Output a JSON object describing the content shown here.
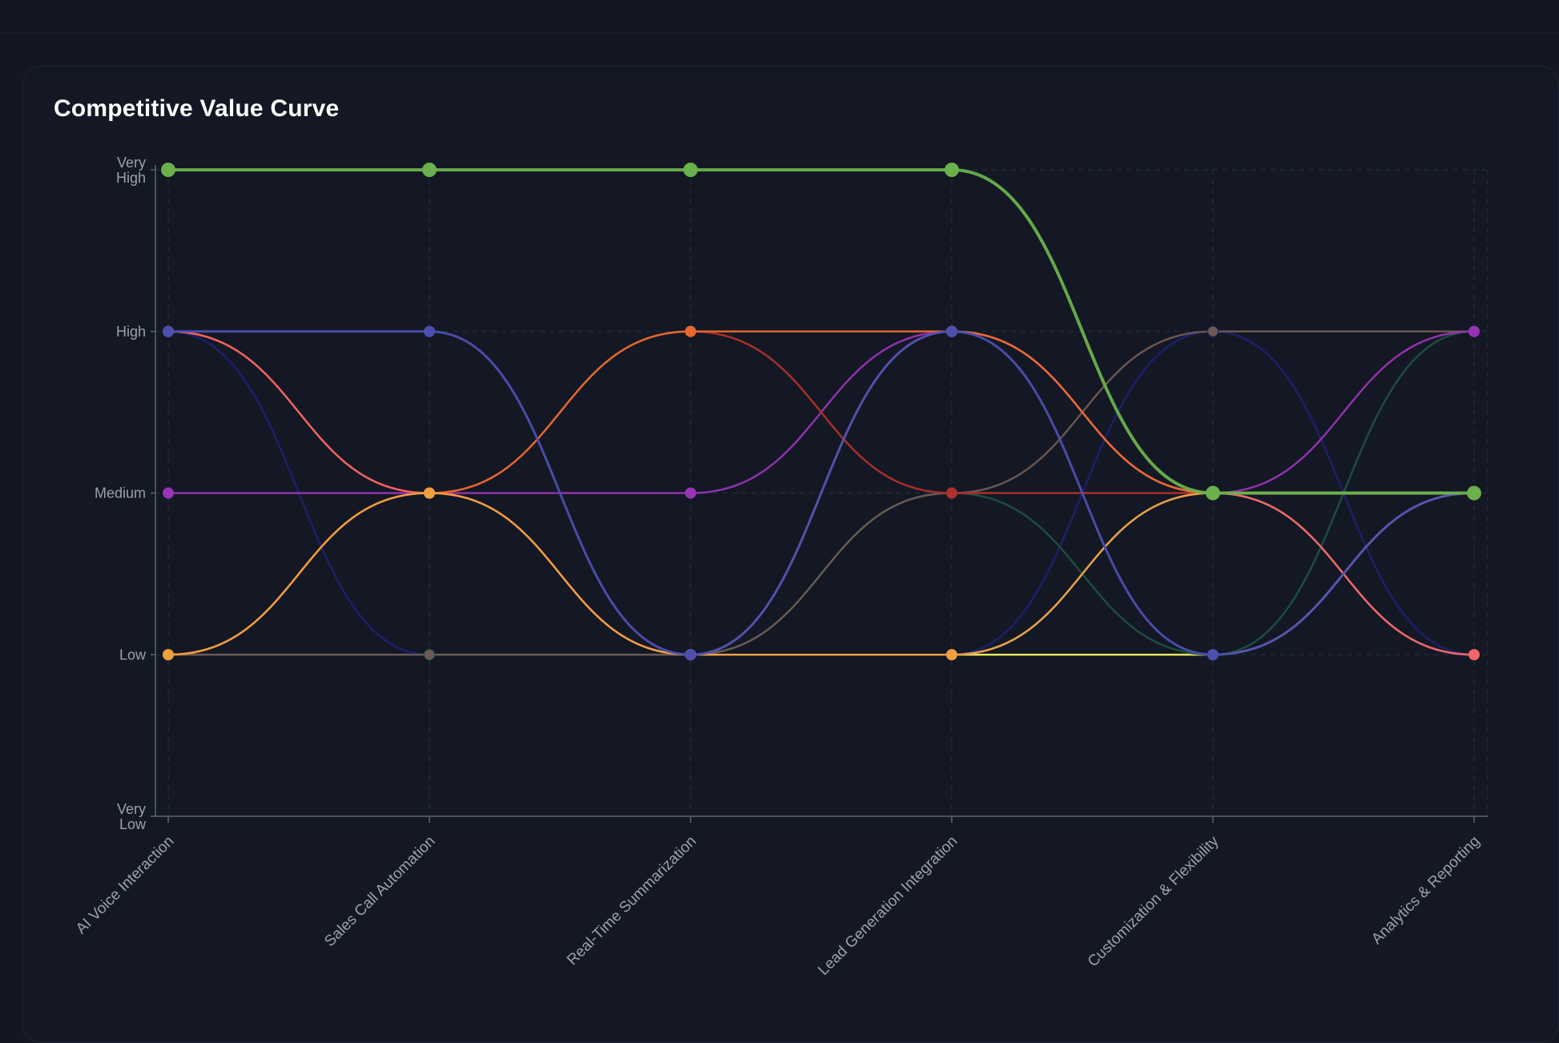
{
  "card": {
    "title": "Competitive Value Curve"
  },
  "colors": {
    "background": "#121722",
    "card": "#131824",
    "grid": "#2a3140",
    "axis": "#5d6473",
    "tick_label": "#9aa1ad"
  },
  "chart_data": {
    "type": "line",
    "title": "Competitive Value Curve",
    "curve": "smooth",
    "grid": true,
    "categories": [
      "AI Voice Interaction",
      "Sales Call Automation",
      "Real-Time Summarization",
      "Lead Generation Integration",
      "Customization & Flexibility",
      "Analytics & Reporting"
    ],
    "y_levels": [
      "Very Low",
      "Low",
      "Medium",
      "High",
      "Very High"
    ],
    "ylim": [
      0,
      4
    ],
    "series": [
      {
        "color": "#6ab04c",
        "width": 4,
        "marker": 9,
        "values": [
          4,
          4,
          4,
          4,
          2,
          2
        ]
      },
      {
        "color": "#4c4fb0",
        "width": 3,
        "marker": 7,
        "values": [
          3,
          3,
          1,
          3,
          1,
          2
        ]
      },
      {
        "color": "#f0a040",
        "width": 2.5,
        "marker": 7,
        "values": [
          1,
          2,
          1,
          1,
          2,
          2
        ]
      },
      {
        "color": "#e8692e",
        "width": 2.5,
        "marker": 7,
        "values": [
          1,
          2,
          3,
          3,
          2,
          2
        ]
      },
      {
        "color": "#f46565",
        "width": 2.5,
        "marker": 7,
        "values": [
          3,
          2,
          1,
          3,
          2,
          1
        ]
      },
      {
        "color": "#b0302c",
        "width": 2.5,
        "marker": 7,
        "values": [
          3,
          2,
          3,
          2,
          2,
          2
        ]
      },
      {
        "color": "#9933b5",
        "width": 2.5,
        "marker": 7,
        "values": [
          2,
          2,
          2,
          3,
          2,
          3
        ]
      },
      {
        "color": "#6e5a55",
        "width": 2.5,
        "marker": 6,
        "values": [
          1,
          1,
          1,
          2,
          3,
          3
        ]
      },
      {
        "color": "#1f4f40",
        "width": 2.5,
        "marker": 7,
        "values": [
          1,
          1,
          1,
          2,
          1,
          3
        ]
      },
      {
        "color": "#7a8690",
        "width": 2.5,
        "marker": 6,
        "values": [
          1,
          1,
          1,
          1,
          2,
          1
        ]
      },
      {
        "color": "#f0ee60",
        "width": 2.5,
        "marker": 6,
        "values": [
          1,
          1,
          1,
          1,
          1,
          2
        ]
      },
      {
        "color": "#1e2070",
        "width": 2.5,
        "marker": 7,
        "values": [
          3,
          1,
          1,
          1,
          3,
          1
        ]
      }
    ]
  }
}
